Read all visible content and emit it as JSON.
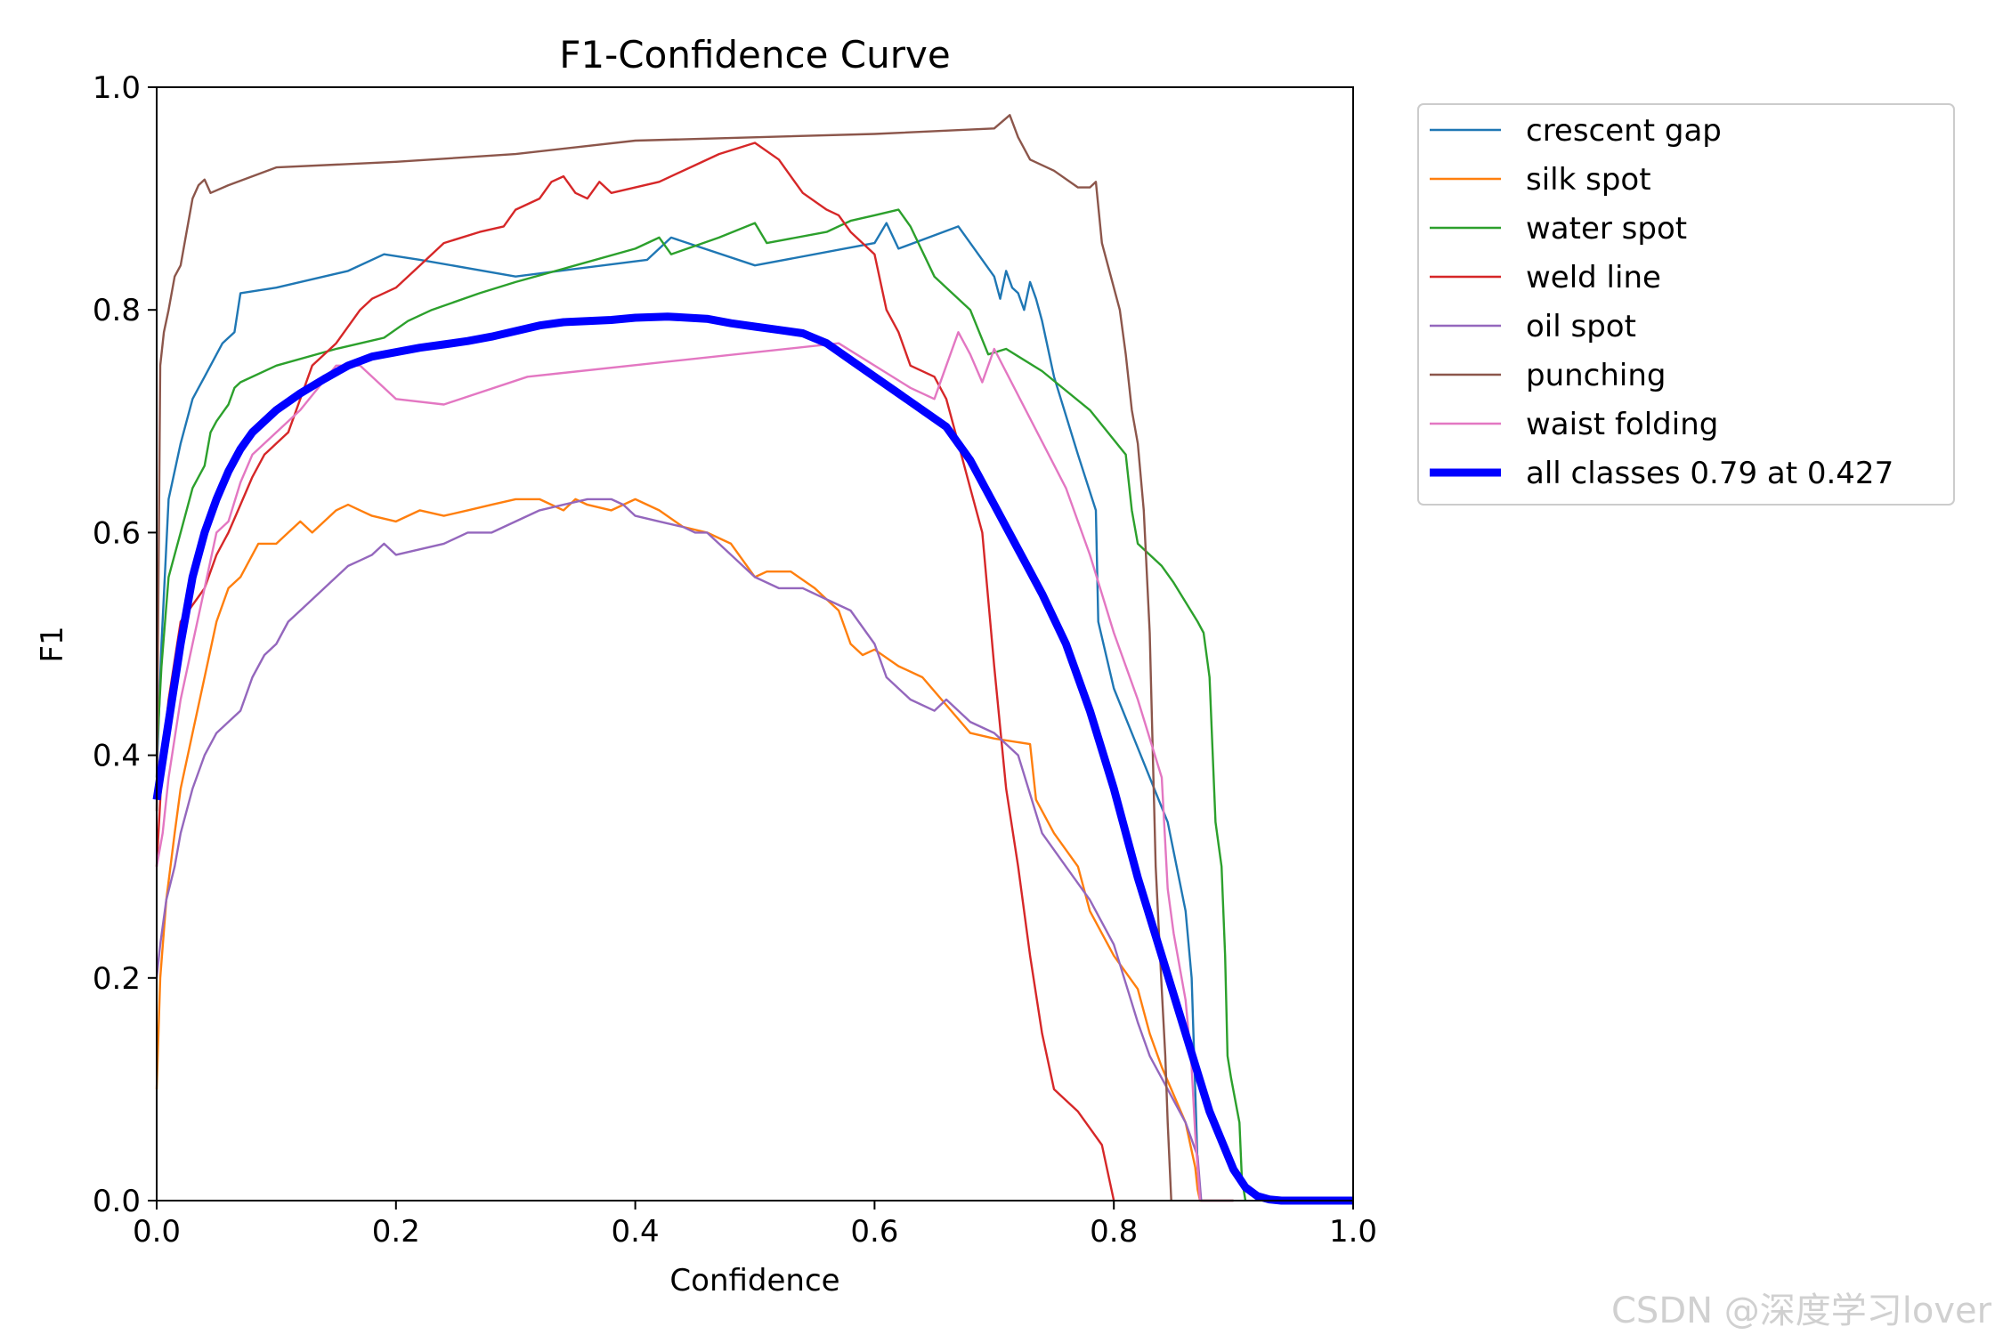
{
  "chart_data": {
    "type": "line",
    "title": "F1-Confidence Curve",
    "xlabel": "Confidence",
    "ylabel": "F1",
    "xlim": [
      0,
      1
    ],
    "ylim": [
      0,
      1
    ],
    "xticks": [
      "0.0",
      "0.2",
      "0.4",
      "0.6",
      "0.8",
      "1.0"
    ],
    "yticks": [
      "0.0",
      "0.2",
      "0.4",
      "0.6",
      "0.8",
      "1.0"
    ],
    "grid": false,
    "legend_position": "outside-top-right",
    "series": [
      {
        "name": "crescent gap",
        "color": "#1f77b4",
        "width": "thin",
        "x": [
          0,
          0.004,
          0.01,
          0.02,
          0.03,
          0.035,
          0.04,
          0.05,
          0.055,
          0.06,
          0.065,
          0.07,
          0.1,
          0.16,
          0.19,
          0.22,
          0.3,
          0.41,
          0.43,
          0.5,
          0.6,
          0.61,
          0.62,
          0.67,
          0.68,
          0.7,
          0.705,
          0.71,
          0.715,
          0.72,
          0.725,
          0.73,
          0.735,
          0.74,
          0.75,
          0.77,
          0.785,
          0.787,
          0.8,
          0.83,
          0.845,
          0.86,
          0.865,
          0.868,
          0.87,
          0.872
        ],
        "y": [
          0.38,
          0.5,
          0.63,
          0.68,
          0.72,
          0.73,
          0.74,
          0.76,
          0.77,
          0.775,
          0.78,
          0.815,
          0.82,
          0.835,
          0.85,
          0.845,
          0.83,
          0.845,
          0.865,
          0.84,
          0.86,
          0.878,
          0.855,
          0.875,
          0.86,
          0.83,
          0.81,
          0.835,
          0.82,
          0.815,
          0.8,
          0.825,
          0.81,
          0.79,
          0.74,
          0.67,
          0.62,
          0.52,
          0.46,
          0.38,
          0.34,
          0.26,
          0.2,
          0.1,
          0.03,
          0
        ]
      },
      {
        "name": "silk spot",
        "color": "#ff7f0e",
        "width": "thin",
        "x": [
          0,
          0.003,
          0.008,
          0.015,
          0.02,
          0.03,
          0.04,
          0.05,
          0.06,
          0.07,
          0.075,
          0.08,
          0.085,
          0.09,
          0.1,
          0.11,
          0.12,
          0.13,
          0.14,
          0.15,
          0.16,
          0.17,
          0.18,
          0.2,
          0.22,
          0.24,
          0.26,
          0.28,
          0.3,
          0.32,
          0.33,
          0.34,
          0.35,
          0.36,
          0.38,
          0.4,
          0.42,
          0.44,
          0.46,
          0.48,
          0.5,
          0.51,
          0.53,
          0.55,
          0.56,
          0.57,
          0.58,
          0.59,
          0.6,
          0.62,
          0.64,
          0.68,
          0.7,
          0.73,
          0.735,
          0.75,
          0.77,
          0.78,
          0.79,
          0.8,
          0.82,
          0.83,
          0.84,
          0.86,
          0.868,
          0.87,
          0.872,
          0.9
        ],
        "y": [
          0.1,
          0.2,
          0.27,
          0.33,
          0.37,
          0.42,
          0.47,
          0.52,
          0.55,
          0.56,
          0.57,
          0.58,
          0.59,
          0.59,
          0.59,
          0.6,
          0.61,
          0.6,
          0.61,
          0.62,
          0.625,
          0.62,
          0.615,
          0.61,
          0.62,
          0.615,
          0.62,
          0.625,
          0.63,
          0.63,
          0.625,
          0.62,
          0.63,
          0.625,
          0.62,
          0.63,
          0.62,
          0.605,
          0.6,
          0.59,
          0.56,
          0.565,
          0.565,
          0.55,
          0.54,
          0.53,
          0.5,
          0.49,
          0.495,
          0.48,
          0.47,
          0.42,
          0.415,
          0.41,
          0.36,
          0.33,
          0.3,
          0.26,
          0.24,
          0.22,
          0.19,
          0.15,
          0.12,
          0.07,
          0.03,
          0.01,
          0,
          0
        ]
      },
      {
        "name": "water spot",
        "color": "#2ca02c",
        "width": "thin",
        "x": [
          0,
          0.004,
          0.01,
          0.02,
          0.03,
          0.035,
          0.04,
          0.045,
          0.05,
          0.06,
          0.065,
          0.07,
          0.1,
          0.15,
          0.19,
          0.21,
          0.23,
          0.27,
          0.3,
          0.35,
          0.4,
          0.42,
          0.43,
          0.47,
          0.5,
          0.51,
          0.56,
          0.58,
          0.6,
          0.62,
          0.63,
          0.65,
          0.66,
          0.68,
          0.695,
          0.71,
          0.74,
          0.78,
          0.81,
          0.812,
          0.815,
          0.82,
          0.84,
          0.85,
          0.87,
          0.875,
          0.88,
          0.885,
          0.89,
          0.893,
          0.895,
          0.898,
          0.905,
          0.907,
          0.91
        ],
        "y": [
          0.4,
          0.48,
          0.56,
          0.6,
          0.64,
          0.65,
          0.66,
          0.69,
          0.7,
          0.715,
          0.73,
          0.735,
          0.75,
          0.765,
          0.775,
          0.79,
          0.8,
          0.815,
          0.825,
          0.84,
          0.855,
          0.865,
          0.85,
          0.865,
          0.878,
          0.86,
          0.87,
          0.88,
          0.885,
          0.89,
          0.875,
          0.83,
          0.82,
          0.8,
          0.76,
          0.765,
          0.745,
          0.71,
          0.67,
          0.65,
          0.62,
          0.59,
          0.57,
          0.555,
          0.52,
          0.51,
          0.47,
          0.34,
          0.3,
          0.22,
          0.13,
          0.11,
          0.07,
          0.02,
          0
        ]
      },
      {
        "name": "weld line",
        "color": "#d62728",
        "width": "thin",
        "x": [
          0,
          0.005,
          0.01,
          0.02,
          0.04,
          0.05,
          0.06,
          0.07,
          0.08,
          0.09,
          0.1,
          0.11,
          0.12,
          0.13,
          0.15,
          0.17,
          0.18,
          0.2,
          0.22,
          0.24,
          0.27,
          0.29,
          0.3,
          0.32,
          0.33,
          0.34,
          0.35,
          0.36,
          0.37,
          0.38,
          0.4,
          0.42,
          0.45,
          0.47,
          0.5,
          0.52,
          0.53,
          0.54,
          0.56,
          0.57,
          0.58,
          0.6,
          0.61,
          0.62,
          0.63,
          0.65,
          0.66,
          0.67,
          0.68,
          0.69,
          0.7,
          0.71,
          0.72,
          0.73,
          0.74,
          0.75,
          0.77,
          0.79,
          0.8
        ],
        "y": [
          0.3,
          0.4,
          0.45,
          0.52,
          0.55,
          0.58,
          0.6,
          0.625,
          0.65,
          0.67,
          0.68,
          0.69,
          0.72,
          0.75,
          0.77,
          0.8,
          0.81,
          0.82,
          0.84,
          0.86,
          0.87,
          0.875,
          0.89,
          0.9,
          0.915,
          0.92,
          0.905,
          0.9,
          0.915,
          0.905,
          0.91,
          0.915,
          0.93,
          0.94,
          0.95,
          0.935,
          0.92,
          0.905,
          0.89,
          0.885,
          0.87,
          0.85,
          0.8,
          0.78,
          0.75,
          0.74,
          0.72,
          0.68,
          0.64,
          0.6,
          0.48,
          0.37,
          0.3,
          0.22,
          0.15,
          0.1,
          0.08,
          0.05,
          0
        ]
      },
      {
        "name": "oil spot",
        "color": "#9467bd",
        "width": "thin",
        "x": [
          0,
          0.003,
          0.008,
          0.015,
          0.02,
          0.03,
          0.04,
          0.05,
          0.06,
          0.07,
          0.08,
          0.09,
          0.1,
          0.11,
          0.12,
          0.13,
          0.14,
          0.15,
          0.16,
          0.17,
          0.18,
          0.19,
          0.2,
          0.22,
          0.24,
          0.26,
          0.28,
          0.3,
          0.32,
          0.34,
          0.36,
          0.38,
          0.39,
          0.4,
          0.42,
          0.44,
          0.45,
          0.46,
          0.48,
          0.5,
          0.52,
          0.54,
          0.56,
          0.58,
          0.6,
          0.61,
          0.63,
          0.65,
          0.66,
          0.68,
          0.7,
          0.72,
          0.74,
          0.76,
          0.78,
          0.8,
          0.82,
          0.83,
          0.84,
          0.85,
          0.86,
          0.87,
          0.873,
          0.9
        ],
        "y": [
          0.2,
          0.23,
          0.27,
          0.3,
          0.33,
          0.37,
          0.4,
          0.42,
          0.43,
          0.44,
          0.47,
          0.49,
          0.5,
          0.52,
          0.53,
          0.54,
          0.55,
          0.56,
          0.57,
          0.575,
          0.58,
          0.59,
          0.58,
          0.585,
          0.59,
          0.6,
          0.6,
          0.61,
          0.62,
          0.625,
          0.63,
          0.63,
          0.625,
          0.615,
          0.61,
          0.605,
          0.6,
          0.6,
          0.58,
          0.56,
          0.55,
          0.55,
          0.54,
          0.53,
          0.5,
          0.47,
          0.45,
          0.44,
          0.45,
          0.43,
          0.42,
          0.4,
          0.33,
          0.3,
          0.27,
          0.23,
          0.16,
          0.13,
          0.11,
          0.09,
          0.07,
          0.04,
          0,
          0
        ]
      },
      {
        "name": "punching",
        "color": "#8c564b",
        "width": "thin",
        "x": [
          0,
          0.003,
          0.006,
          0.01,
          0.015,
          0.02,
          0.025,
          0.03,
          0.035,
          0.04,
          0.045,
          0.06,
          0.1,
          0.2,
          0.3,
          0.4,
          0.6,
          0.7,
          0.713,
          0.72,
          0.73,
          0.75,
          0.77,
          0.78,
          0.785,
          0.79,
          0.8,
          0.805,
          0.81,
          0.815,
          0.82,
          0.825,
          0.83,
          0.835,
          0.84,
          0.843,
          0.845,
          0.848
        ],
        "y": [
          0.35,
          0.75,
          0.78,
          0.8,
          0.83,
          0.84,
          0.87,
          0.9,
          0.912,
          0.917,
          0.905,
          0.912,
          0.928,
          0.933,
          0.94,
          0.952,
          0.958,
          0.963,
          0.975,
          0.955,
          0.935,
          0.925,
          0.91,
          0.91,
          0.915,
          0.86,
          0.82,
          0.8,
          0.76,
          0.71,
          0.68,
          0.62,
          0.51,
          0.3,
          0.19,
          0.13,
          0.07,
          0
        ]
      },
      {
        "name": "waist folding",
        "color": "#e377c2",
        "width": "thin",
        "x": [
          0,
          0.005,
          0.01,
          0.02,
          0.03,
          0.04,
          0.05,
          0.06,
          0.07,
          0.08,
          0.1,
          0.12,
          0.15,
          0.17,
          0.2,
          0.24,
          0.31,
          0.57,
          0.63,
          0.65,
          0.66,
          0.67,
          0.68,
          0.69,
          0.7,
          0.76,
          0.78,
          0.8,
          0.82,
          0.84,
          0.845,
          0.85,
          0.86,
          0.865,
          0.868,
          0.87,
          0.872
        ],
        "y": [
          0.3,
          0.33,
          0.38,
          0.45,
          0.5,
          0.55,
          0.6,
          0.61,
          0.645,
          0.67,
          0.69,
          0.71,
          0.75,
          0.75,
          0.72,
          0.715,
          0.74,
          0.77,
          0.73,
          0.72,
          0.75,
          0.78,
          0.76,
          0.735,
          0.765,
          0.64,
          0.58,
          0.51,
          0.45,
          0.38,
          0.28,
          0.24,
          0.18,
          0.12,
          0.06,
          0.03,
          0
        ]
      },
      {
        "name": "all classes 0.79 at 0.427",
        "color": "#0000ff",
        "width": "thick",
        "x": [
          0,
          0.01,
          0.02,
          0.03,
          0.04,
          0.05,
          0.06,
          0.07,
          0.08,
          0.1,
          0.12,
          0.14,
          0.16,
          0.18,
          0.2,
          0.22,
          0.24,
          0.26,
          0.28,
          0.3,
          0.32,
          0.34,
          0.36,
          0.38,
          0.4,
          0.427,
          0.46,
          0.48,
          0.5,
          0.52,
          0.54,
          0.56,
          0.58,
          0.6,
          0.62,
          0.64,
          0.66,
          0.68,
          0.7,
          0.72,
          0.74,
          0.76,
          0.78,
          0.8,
          0.82,
          0.84,
          0.86,
          0.88,
          0.9,
          0.91,
          0.92,
          0.93,
          0.94,
          1.0
        ],
        "y": [
          0.36,
          0.43,
          0.5,
          0.56,
          0.6,
          0.63,
          0.655,
          0.675,
          0.69,
          0.71,
          0.725,
          0.738,
          0.75,
          0.758,
          0.762,
          0.766,
          0.769,
          0.772,
          0.776,
          0.781,
          0.786,
          0.789,
          0.79,
          0.791,
          0.793,
          0.794,
          0.792,
          0.788,
          0.785,
          0.782,
          0.779,
          0.77,
          0.755,
          0.74,
          0.725,
          0.71,
          0.695,
          0.665,
          0.625,
          0.585,
          0.545,
          0.5,
          0.44,
          0.37,
          0.29,
          0.22,
          0.15,
          0.08,
          0.028,
          0.012,
          0.004,
          0.001,
          0,
          0
        ]
      }
    ]
  },
  "watermark": "CSDN @深度学习lover"
}
